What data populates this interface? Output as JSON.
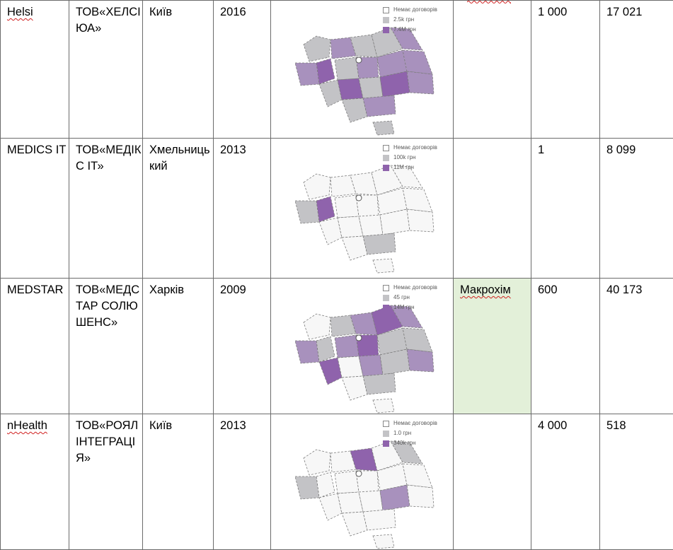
{
  "rows": [
    {
      "name": "Helsi",
      "company": "ТОВ«ХЕЛСІ ЮА»",
      "city": "Київ",
      "year": "2016",
      "legend": [
        "Немає договорів",
        "2.5k грн",
        "7.4M грн"
      ],
      "partner": "",
      "col_a": "1 000",
      "col_b": "17 021"
    },
    {
      "name": "MEDICS IT",
      "company": "ТОВ«МЕДІКС ІТ»",
      "city": "Хмельницький",
      "year": "2013",
      "legend": [
        "Немає договорів",
        "100k грн",
        "11M грн"
      ],
      "partner": "",
      "col_a": "1",
      "col_b": "8 099"
    },
    {
      "name": "MEDSTAR",
      "company": "ТОВ«МЕДСТАР СОЛЮШЕНС»",
      "city": "Харків",
      "year": "2009",
      "legend": [
        "Немає договорів",
        "45 грн",
        "14M грн"
      ],
      "partner": "Макрохім",
      "col_a": "600",
      "col_b": "40 173"
    },
    {
      "name": "nHealth",
      "company": "ТОВ«РОЯЛ ІНТЕГРАЦІЯ»",
      "city": "Київ",
      "year": "2013",
      "legend": [
        "Немає договорів",
        "1.0 грн",
        "340k грн"
      ],
      "partner": "",
      "col_a": "4 000",
      "col_b": "518"
    }
  ],
  "colors": {
    "none": "#f7f7f7",
    "low": "#c3c3c6",
    "mid": "#a891bd",
    "high": "#8f63ac",
    "highlight_cell": "#e3f0d9",
    "spellcheck": "#d02020"
  },
  "maps": [
    {
      "row": 0,
      "shading": [
        "low",
        "mid",
        "high",
        "mid",
        "low",
        "low",
        "mid",
        "low",
        "mid",
        "mid",
        "mid",
        "low",
        "high",
        "low",
        "high",
        "mid",
        "low",
        "mid",
        "low"
      ]
    },
    {
      "row": 1,
      "shading": [
        "none",
        "none",
        "high",
        "low",
        "none",
        "none",
        "none",
        "none",
        "none",
        "none",
        "none",
        "none",
        "none",
        "none",
        "none",
        "none",
        "none",
        "low",
        "none"
      ]
    },
    {
      "row": 2,
      "shading": [
        "none",
        "low",
        "low",
        "mid",
        "mid",
        "high",
        "mid",
        "mid",
        "high",
        "low",
        "low",
        "high",
        "none",
        "mid",
        "low",
        "mid",
        "none",
        "low",
        "none"
      ]
    },
    {
      "row": 3,
      "shading": [
        "none",
        "none",
        "none",
        "low",
        "high",
        "none",
        "low",
        "none",
        "none",
        "none",
        "none",
        "none",
        "none",
        "none",
        "mid",
        "none",
        "none",
        "none",
        "none"
      ]
    }
  ]
}
